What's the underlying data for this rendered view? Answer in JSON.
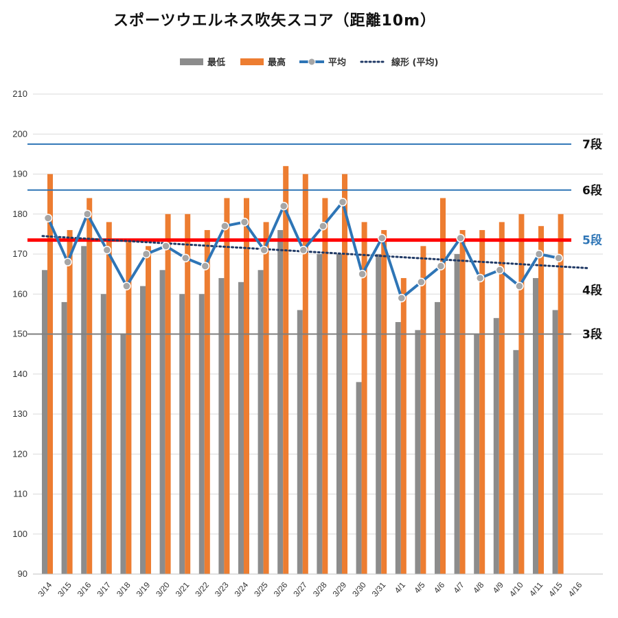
{
  "chart_data": {
    "type": "bar",
    "title": "スポーツウエルネス吹矢スコア（距離10m）",
    "categories": [
      "3/14",
      "3/15",
      "3/16",
      "3/17",
      "3/18",
      "3/19",
      "3/20",
      "3/21",
      "3/22",
      "3/23",
      "3/24",
      "3/25",
      "3/26",
      "3/27",
      "3/28",
      "3/29",
      "3/30",
      "3/31",
      "4/1",
      "4/5",
      "4/6",
      "4/7",
      "4/8",
      "4/9",
      "4/10",
      "4/11",
      "4/15",
      "4/16"
    ],
    "ylim": [
      90,
      210
    ],
    "yticks": [
      90,
      100,
      110,
      120,
      130,
      140,
      150,
      160,
      170,
      180,
      190,
      200,
      210
    ],
    "grid": true,
    "legend_position": "top",
    "legend": [
      {
        "key": "min",
        "label": "最低",
        "color": "#8c8c8c",
        "kind": "bar"
      },
      {
        "key": "max",
        "label": "最高",
        "color": "#ed7d31",
        "kind": "bar"
      },
      {
        "key": "avg",
        "label": "平均",
        "color": "#2e75b6",
        "kind": "line"
      },
      {
        "key": "trend",
        "label": "線形 (平均)",
        "color": "#1f3864",
        "kind": "dotted"
      }
    ],
    "series": [
      {
        "name": "最低",
        "values": [
          166,
          158,
          172,
          160,
          150,
          162,
          166,
          160,
          160,
          164,
          163,
          166,
          176,
          156,
          170,
          170,
          138,
          170,
          153,
          151,
          158,
          170,
          150,
          154,
          146,
          164,
          156,
          null
        ]
      },
      {
        "name": "最高",
        "values": [
          190,
          176,
          184,
          178,
          173,
          172,
          180,
          180,
          176,
          184,
          184,
          178,
          192,
          190,
          184,
          190,
          178,
          176,
          164,
          172,
          184,
          176,
          176,
          178,
          180,
          177,
          180,
          null
        ]
      },
      {
        "name": "平均",
        "values": [
          179,
          168,
          180,
          171,
          162,
          170,
          172,
          169,
          167,
          177,
          178,
          171,
          182,
          171,
          177,
          183,
          165,
          174,
          159,
          163,
          167,
          174,
          164,
          166,
          162,
          170,
          169,
          null
        ]
      }
    ],
    "trendline": {
      "name": "線形 (平均)",
      "start": 174.5,
      "end": 166.5
    },
    "reference_lines": [
      {
        "label": "7段",
        "value": 197.5,
        "color": "#2e75b6",
        "label_color": "#111111",
        "width": 2
      },
      {
        "label": "6段",
        "value": 186,
        "color": "#2e75b6",
        "label_color": "#111111",
        "width": 2
      },
      {
        "label": "5段",
        "value": 173.5,
        "color": "#ff0000",
        "label_color": "#2e75b6",
        "width": 5
      },
      {
        "label": "4段",
        "value": 161,
        "color": null,
        "label_color": "#111111",
        "width": 0
      },
      {
        "label": "3段",
        "value": 150,
        "color": "#7f7f7f",
        "label_color": "#111111",
        "width": 2
      }
    ]
  }
}
